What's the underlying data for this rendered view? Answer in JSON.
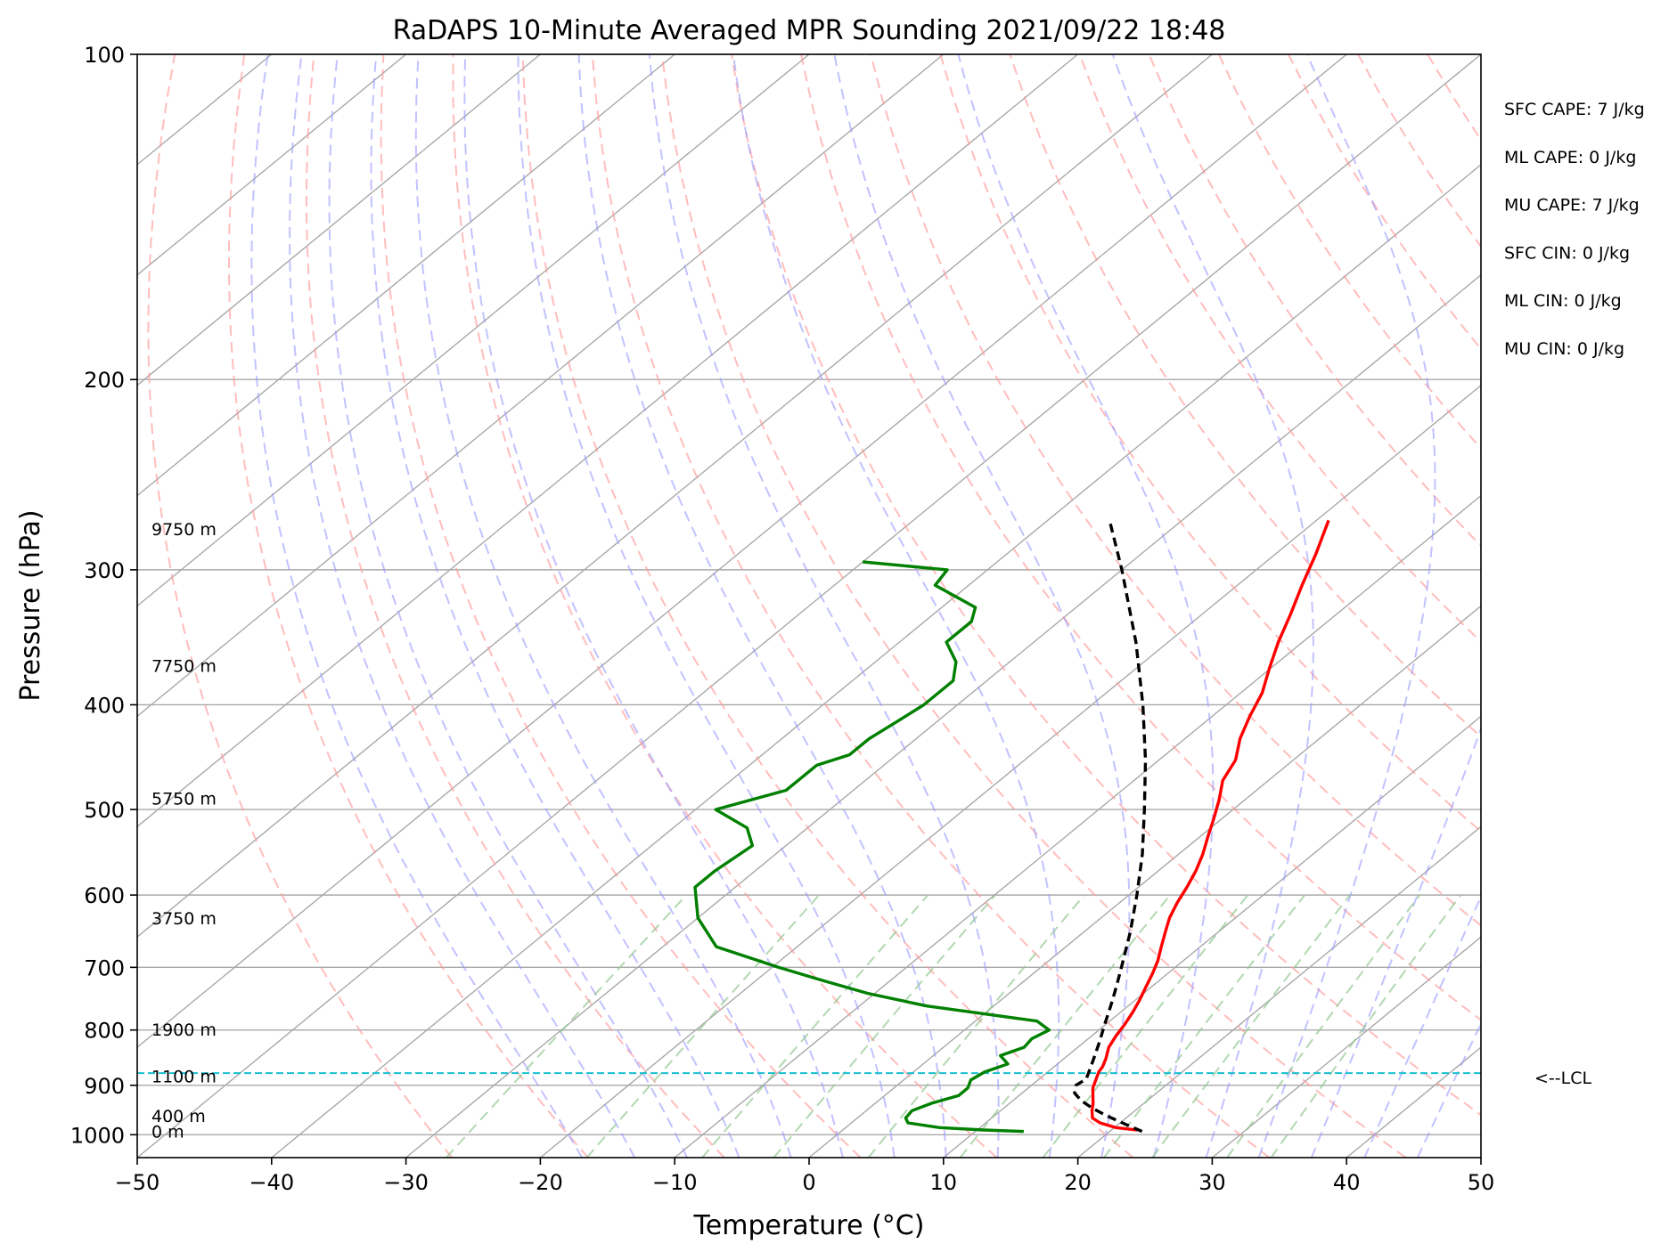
{
  "chart_data": {
    "type": "line",
    "subtype": "skew-t log-p",
    "title": "RaDAPS 10-Minute Averaged MPR Sounding 2021/09/22 18:48",
    "xlabel": "Temperature (°C)",
    "ylabel": "Pressure (hPa)",
    "xlim": [
      -50,
      50
    ],
    "ylim": [
      1050,
      100
    ],
    "yscale": "log",
    "grid": true,
    "x_ticks": [
      -50,
      -40,
      -30,
      -20,
      -10,
      0,
      10,
      20,
      30,
      40,
      50
    ],
    "x_tick_labels": [
      "−50",
      "−40",
      "−30",
      "−20",
      "−10",
      "0",
      "10",
      "20",
      "30",
      "40",
      "50"
    ],
    "y_ticks": [
      100,
      200,
      300,
      400,
      500,
      600,
      700,
      800,
      900,
      1000
    ],
    "y_tick_labels": [
      "100",
      "200",
      "300",
      "400",
      "500",
      "600",
      "700",
      "800",
      "900",
      "1000"
    ],
    "colors": {
      "temperature": "#ff0000",
      "dewpoint": "#008000",
      "parcel": "#000000",
      "lcl_line": "#17becf",
      "isotherm": "#a9a9a9",
      "dry_adiabat": "#ff9999",
      "moist_adiabat": "#9999ff",
      "mixing_ratio": "#90c890"
    },
    "series": [
      {
        "key": "temperature",
        "pressure": [
          990,
          985,
          975,
          965,
          950,
          935,
          920,
          905,
          890,
          875,
          865,
          850,
          830,
          810,
          790,
          770,
          750,
          730,
          710,
          690,
          670,
          650,
          630,
          610,
          590,
          570,
          550,
          530,
          510,
          490,
          470,
          450,
          430,
          410,
          390,
          370,
          350,
          330,
          310,
          290,
          270
        ],
        "values": [
          21.9,
          20.1,
          18.5,
          17.5,
          16.8,
          16.2,
          15.5,
          14.8,
          14.3,
          13.8,
          13.6,
          13.1,
          12.3,
          11.8,
          11.4,
          10.9,
          10.3,
          9.6,
          8.9,
          8.1,
          7.1,
          6.1,
          5.1,
          4.3,
          3.6,
          2.8,
          1.8,
          0.6,
          -0.6,
          -1.9,
          -3.4,
          -4.3,
          -5.9,
          -7.2,
          -8.4,
          -10.1,
          -11.8,
          -13.4,
          -15.2,
          -17.0,
          -19.1
        ]
      },
      {
        "key": "dewpoint",
        "pressure": [
          993,
          990,
          985,
          975,
          965,
          950,
          935,
          920,
          905,
          890,
          875,
          860,
          845,
          830,
          815,
          800,
          785,
          760,
          740,
          720,
          700,
          670,
          630,
          590,
          570,
          540,
          520,
          500,
          480,
          455,
          445,
          430,
          415,
          400,
          380,
          365,
          350,
          335,
          325,
          310,
          300,
          295
        ],
        "values": [
          13.6,
          10.5,
          7.0,
          4.2,
          3.6,
          3.4,
          4.2,
          5.5,
          5.5,
          5.0,
          5.3,
          6.3,
          5.0,
          6.0,
          5.8,
          6.3,
          4.6,
          -5.0,
          -10.5,
          -15.0,
          -19.5,
          -26.0,
          -30.0,
          -33.0,
          -33.0,
          -32.5,
          -34.5,
          -38.5,
          -35.0,
          -35.0,
          -33.5,
          -33.5,
          -33.0,
          -32.5,
          -32.5,
          -34.0,
          -36.5,
          -36.5,
          -37.5,
          -42.5,
          -43.0,
          -50.0
        ]
      },
      {
        "key": "parcel",
        "pressure": [
          993,
          977,
          960,
          945,
          930,
          915,
          900,
          888,
          870,
          850,
          820,
          790,
          760,
          730,
          700,
          650,
          600,
          550,
          500,
          450,
          400,
          350,
          300,
          270
        ],
        "values": [
          22.4,
          20.4,
          18.3,
          16.6,
          15.1,
          13.9,
          13.3,
          13.5,
          12.9,
          12.2,
          11.1,
          9.9,
          8.7,
          7.4,
          6.0,
          3.5,
          0.6,
          -2.7,
          -6.6,
          -11.0,
          -16.2,
          -22.4,
          -30.0,
          -35.4
        ]
      }
    ],
    "lcl_pressure": 877,
    "lcl_label": "<--LCL",
    "height_annotations": [
      {
        "label": "9750 m",
        "pressure": 275
      },
      {
        "label": "7750 m",
        "pressure": 368
      },
      {
        "label": "5750 m",
        "pressure": 488
      },
      {
        "label": "3750 m",
        "pressure": 630
      },
      {
        "label": "1900 m",
        "pressure": 799
      },
      {
        "label": "1100 m",
        "pressure": 883
      },
      {
        "label": "400 m",
        "pressure": 960
      },
      {
        "label": "0 m",
        "pressure": 993
      }
    ],
    "stats": [
      "SFC CAPE: 7 J/kg",
      "ML CAPE: 0 J/kg",
      "MU CAPE: 7 J/kg",
      "SFC CIN: 0 J/kg",
      "ML CIN: 0 J/kg",
      "MU CIN: 0 J/kg"
    ]
  }
}
